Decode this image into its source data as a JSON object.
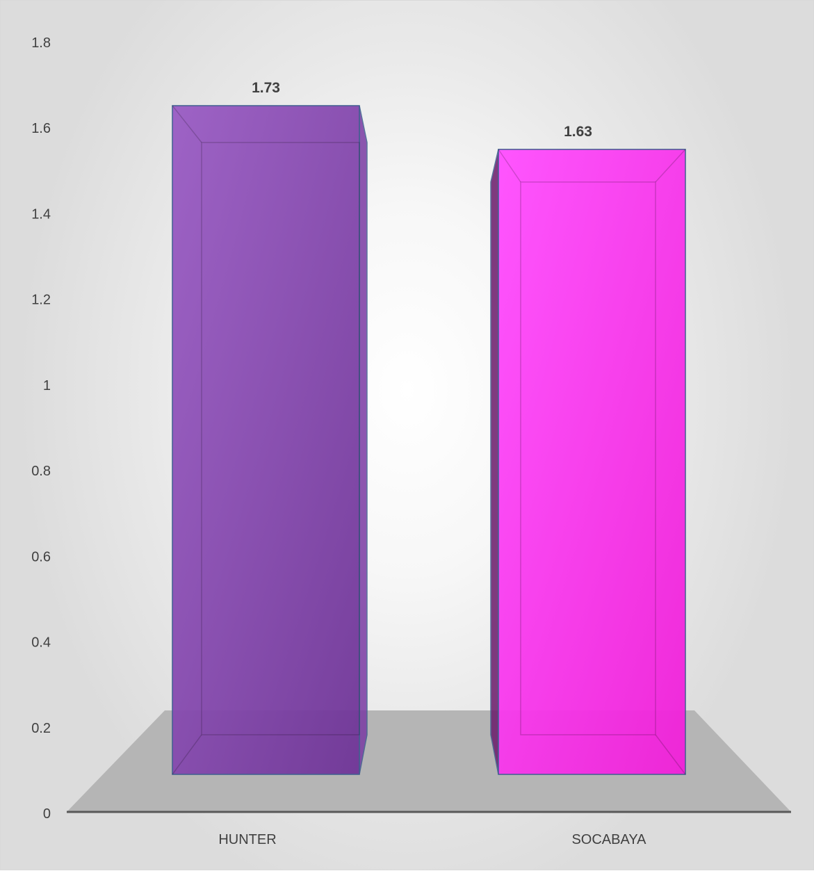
{
  "chart_data": {
    "type": "bar",
    "style": "3d-clustered-column",
    "categories": [
      "HUNTER",
      "SOCABAYA"
    ],
    "series": [
      {
        "values": [
          1.73,
          1.63
        ]
      }
    ],
    "data_labels": [
      "1.73",
      "1.63"
    ],
    "bar_colors": [
      "#7a3aa3",
      "#ff33ee"
    ],
    "ylim": [
      0,
      1.8
    ],
    "yticks": [
      0,
      0.2,
      0.4,
      0.6,
      0.8,
      1,
      1.2,
      1.4,
      1.6,
      1.8
    ],
    "ytick_labels": [
      "0",
      "0.2",
      "0.4",
      "0.6",
      "0.8",
      "1",
      "1.2",
      "1.4",
      "1.6",
      "1.8"
    ],
    "title": "",
    "xlabel": "",
    "ylabel": "",
    "grid": false,
    "legend": "none"
  },
  "colors": {
    "floor": "#b5b5b5",
    "axis_line": "#595959",
    "text": "#404040",
    "bar_edge": "#3f5f8f"
  }
}
